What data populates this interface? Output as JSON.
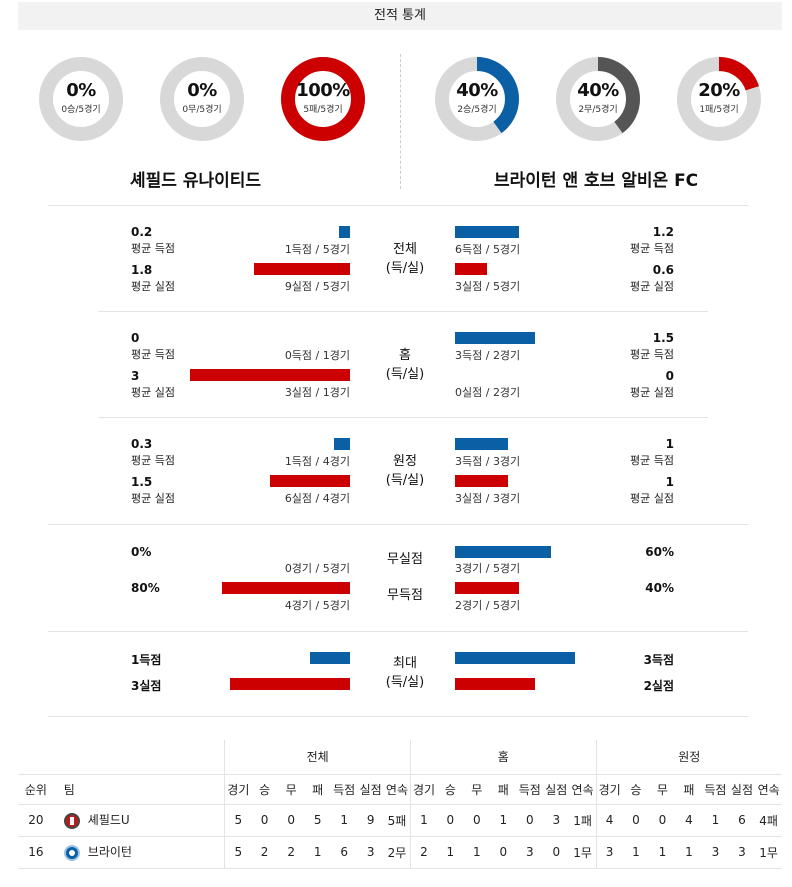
{
  "title": "전적 통계",
  "home": {
    "name": "셰필드 유나이티드",
    "donuts": [
      {
        "pct": "0%",
        "sub": "0승/5경기",
        "fraction": 0,
        "color": "#0b5fa5"
      },
      {
        "pct": "0%",
        "sub": "0무/5경기",
        "fraction": 0,
        "color": "#555555"
      },
      {
        "pct": "100%",
        "sub": "5패/5경기",
        "fraction": 1,
        "color": "#cc0000"
      }
    ]
  },
  "away": {
    "name": "브라이턴 앤 호브 알비온 FC",
    "donuts": [
      {
        "pct": "40%",
        "sub": "2승/5경기",
        "fraction": 0.4,
        "color": "#0b5fa5"
      },
      {
        "pct": "40%",
        "sub": "2무/5경기",
        "fraction": 0.4,
        "color": "#555555"
      },
      {
        "pct": "20%",
        "sub": "1패/5경기",
        "fraction": 0.2,
        "color": "#cc0000"
      }
    ]
  },
  "sections": {
    "total": {
      "label1": "전체",
      "label2": "(득/실)",
      "home_scored": {
        "value": "0.2",
        "label": "평균 득점",
        "count": "1득점 / 5경기",
        "fraction": 0.07
      },
      "home_conceded": {
        "value": "1.8",
        "label": "평균 실점",
        "count": "9실점 / 5경기",
        "fraction": 0.6
      },
      "away_scored": {
        "value": "1.2",
        "label": "평균 득점",
        "count": "6득점 / 5경기",
        "fraction": 0.4
      },
      "away_conceded": {
        "value": "0.6",
        "label": "평균 실점",
        "count": "3실점 / 5경기",
        "fraction": 0.2
      }
    },
    "home": {
      "label1": "홈",
      "label2": "(득/실)",
      "home_scored": {
        "value": "0",
        "label": "평균 득점",
        "count": "0득점 / 1경기",
        "fraction": 0
      },
      "home_conceded": {
        "value": "3",
        "label": "평균 실점",
        "count": "3실점 / 1경기",
        "fraction": 1
      },
      "away_scored": {
        "value": "1.5",
        "label": "평균 득점",
        "count": "3득점 / 2경기",
        "fraction": 0.5
      },
      "away_conceded": {
        "value": "0",
        "label": "평균 실점",
        "count": "0실점 / 2경기",
        "fraction": 0
      }
    },
    "away": {
      "label1": "원정",
      "label2": "(득/실)",
      "home_scored": {
        "value": "0.3",
        "label": "평균 득점",
        "count": "1득점 / 4경기",
        "fraction": 0.1
      },
      "home_conceded": {
        "value": "1.5",
        "label": "평균 실점",
        "count": "6실점 / 4경기",
        "fraction": 0.5
      },
      "away_scored": {
        "value": "1",
        "label": "평균 득점",
        "count": "3득점 / 3경기",
        "fraction": 0.33
      },
      "away_conceded": {
        "value": "1",
        "label": "평균 실점",
        "count": "3실점 / 3경기",
        "fraction": 0.33
      }
    },
    "clean": {
      "label_top": "무실점",
      "label_bottom": "무득점",
      "home_clean": {
        "value": "0%",
        "count": "0경기 / 5경기",
        "fraction": 0
      },
      "home_blank": {
        "value": "80%",
        "count": "4경기 / 5경기",
        "fraction": 0.8
      },
      "away_clean": {
        "value": "60%",
        "count": "3경기 / 5경기",
        "fraction": 0.6
      },
      "away_blank": {
        "value": "40%",
        "count": "2경기 / 5경기",
        "fraction": 0.4
      }
    },
    "max": {
      "label1": "최대",
      "label2": "(득/실)",
      "home_scored": {
        "value": "1득점",
        "fraction": 0.25
      },
      "home_conceded": {
        "value": "3실점",
        "fraction": 0.75
      },
      "away_scored": {
        "value": "3득점",
        "fraction": 0.75
      },
      "away_conceded": {
        "value": "2실점",
        "fraction": 0.5
      }
    }
  },
  "standings": {
    "groups": [
      "전체",
      "홈",
      "원정"
    ],
    "col_rank": "순위",
    "col_team": "팀",
    "cols": [
      "경기",
      "승",
      "무",
      "패",
      "득점",
      "실점",
      "연속"
    ],
    "rows": [
      {
        "rank": "20",
        "team": "셰필드U",
        "crest": "sheffield-crest-icon",
        "total": [
          "5",
          "0",
          "0",
          "5",
          "1",
          "9",
          "5패"
        ],
        "home": [
          "1",
          "0",
          "0",
          "1",
          "0",
          "3",
          "1패"
        ],
        "away": [
          "4",
          "0",
          "0",
          "4",
          "1",
          "6",
          "4패"
        ]
      },
      {
        "rank": "16",
        "team": "브라이턴",
        "crest": "brighton-crest-icon",
        "total": [
          "5",
          "2",
          "2",
          "1",
          "6",
          "3",
          "2무"
        ],
        "home": [
          "2",
          "1",
          "1",
          "0",
          "3",
          "0",
          "1무"
        ],
        "away": [
          "3",
          "1",
          "1",
          "1",
          "3",
          "3",
          "1무"
        ]
      }
    ]
  }
}
